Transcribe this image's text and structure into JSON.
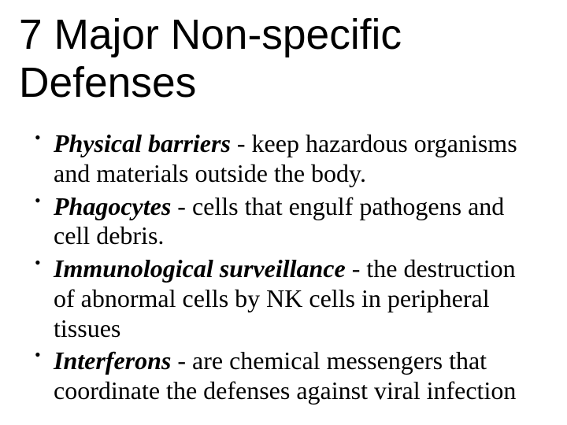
{
  "slide": {
    "background_color": "#ffffff",
    "text_color": "#000000",
    "title": {
      "text": "7 Major Non-specific Defenses",
      "font_family": "Arial",
      "font_size_pt": 40,
      "font_weight": "normal"
    },
    "body": {
      "font_family": "Times New Roman",
      "font_size_pt": 24,
      "line_height": 1.18,
      "bullet_char": "•"
    },
    "bullets": [
      {
        "term": "Physical barriers",
        "sep": " -  ",
        "desc": "keep hazardous organisms and materials outside the body."
      },
      {
        "term": "Phagocytes",
        "sep": " - ",
        "desc": "cells that engulf pathogens and cell debris."
      },
      {
        "term": "Immunological surveillance",
        "sep": " - ",
        "desc": "the destruction of abnormal cells by NK cells in peripheral tissues"
      },
      {
        "term": "Interferons",
        "sep": " - ",
        "desc": "are chemical messengers that coordinate the defenses against viral infection"
      }
    ]
  }
}
